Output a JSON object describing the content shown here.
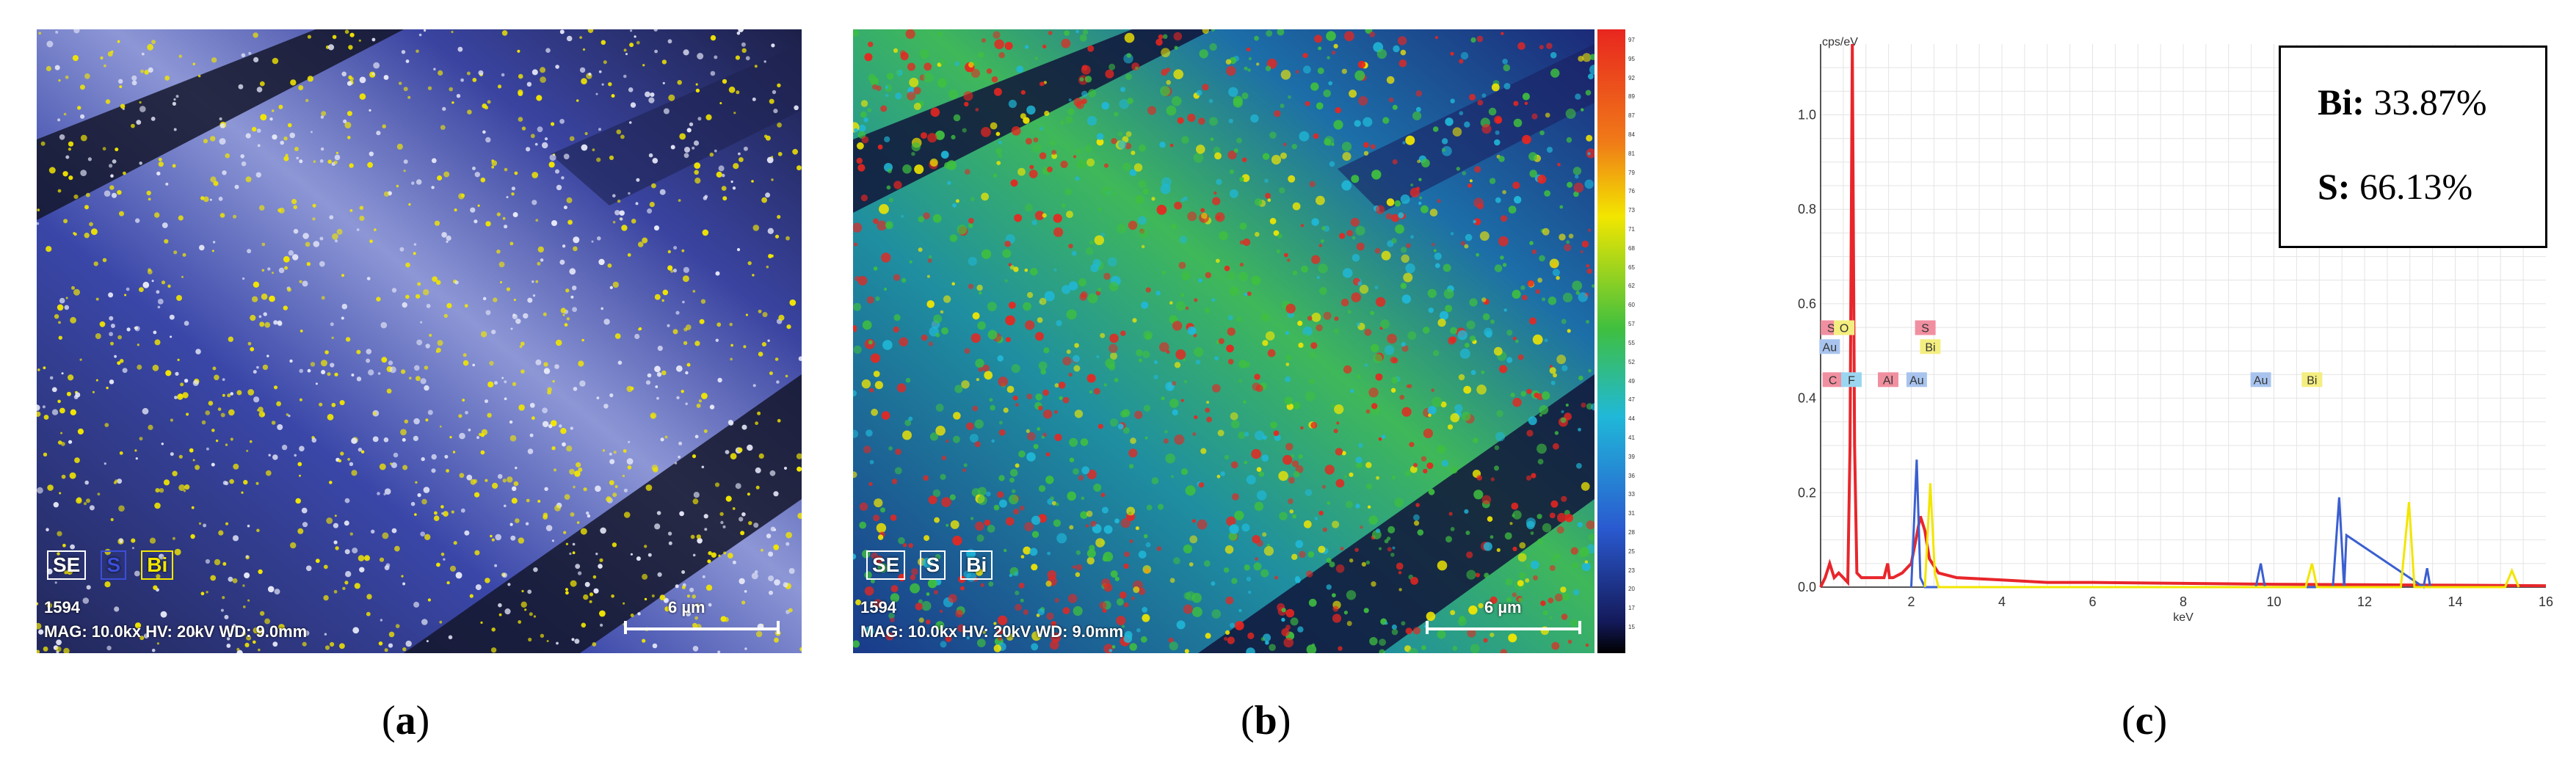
{
  "panel_a": {
    "legend": [
      {
        "label": "SE",
        "color": "#ffffff"
      },
      {
        "label": "S",
        "color": "#3b4fd8"
      },
      {
        "label": "Bi",
        "color": "#f2e600"
      }
    ],
    "sample_id": "1594",
    "info": "MAG: 10.0kx  HV: 20kV  WD: 9.0mm",
    "scalebar_label": "6 µm",
    "caption": "a"
  },
  "panel_b": {
    "legend": [
      {
        "label": "SE",
        "color": "#ffffff"
      },
      {
        "label": "S",
        "color": "#ffffff"
      },
      {
        "label": "Bi",
        "color": "#ffffff"
      }
    ],
    "sample_id": "1594",
    "info": "MAG: 10.0kx  HV: 20kV  WD: 9.0mm",
    "scalebar_label": "6 µm",
    "caption": "b",
    "colorbar_ticks": [
      "97",
      "95",
      "92",
      "89",
      "87",
      "84",
      "81",
      "79",
      "76",
      "73",
      "71",
      "68",
      "65",
      "62",
      "60",
      "57",
      "55",
      "52",
      "49",
      "47",
      "44",
      "41",
      "39",
      "36",
      "33",
      "31",
      "28",
      "25",
      "23",
      "20",
      "17",
      "15"
    ]
  },
  "panel_c": {
    "caption": "c",
    "results": [
      {
        "element": "Bi:",
        "value": "33.87%"
      },
      {
        "element": "S:",
        "value": "66.13%"
      }
    ]
  },
  "chart_data": {
    "type": "line",
    "title": "",
    "xlabel": "keV",
    "ylabel": "cps/eV",
    "xlim": [
      0,
      16
    ],
    "ylim": [
      0,
      1.15
    ],
    "x_ticks": [
      "2",
      "4",
      "6",
      "8",
      "10",
      "12",
      "14",
      "16"
    ],
    "y_ticks": [
      "0.0",
      "0.2",
      "0.4",
      "0.6",
      "0.8",
      "1.0"
    ],
    "grid": true,
    "series": [
      {
        "color": "#e8262b",
        "x": [
          0.0,
          0.1,
          0.2,
          0.3,
          0.4,
          0.5,
          0.6,
          0.65,
          0.7,
          0.75,
          0.8,
          0.9,
          1.0,
          1.2,
          1.4,
          1.48,
          1.52,
          1.6,
          1.8,
          2.0,
          2.1,
          2.2,
          2.3,
          2.4,
          2.6,
          3.0,
          4.0,
          5.0,
          6.0,
          8.0,
          10.0,
          12.0,
          14.0,
          16.0
        ],
        "y": [
          0.0,
          0.02,
          0.05,
          0.02,
          0.03,
          0.02,
          0.01,
          0.3,
          1.15,
          0.3,
          0.03,
          0.02,
          0.02,
          0.02,
          0.02,
          0.05,
          0.02,
          0.02,
          0.03,
          0.05,
          0.1,
          0.15,
          0.12,
          0.06,
          0.03,
          0.02,
          0.015,
          0.01,
          0.01,
          0.008,
          0.006,
          0.005,
          0.004,
          0.003
        ]
      },
      {
        "color": "#3b5fd0",
        "x": [
          2.0,
          2.12,
          2.2,
          2.3,
          9.6,
          9.71,
          9.8,
          11.3,
          11.44,
          11.55,
          11.6,
          13.3,
          13.38,
          13.45
        ],
        "y": [
          0.0,
          0.27,
          0.02,
          0.0,
          0.0,
          0.05,
          0.0,
          0.0,
          0.19,
          0.0,
          0.11,
          0.0,
          0.04,
          0.0
        ]
      },
      {
        "color": "#f2e600",
        "x": [
          2.3,
          2.42,
          2.52,
          2.6,
          10.7,
          10.84,
          10.95,
          12.8,
          12.98,
          13.1,
          15.1,
          15.25,
          15.4
        ],
        "y": [
          0.0,
          0.22,
          0.03,
          0.0,
          0.0,
          0.05,
          0.0,
          0.0,
          0.18,
          0.0,
          0.0,
          0.035,
          0.0
        ]
      }
    ],
    "annotations": [
      {
        "label": "Au",
        "x": 0.2,
        "color": "#a8c4ee"
      },
      {
        "label": "C",
        "x": 0.27,
        "color": "#f08fa0"
      },
      {
        "label": "S",
        "x": 0.23,
        "color": "#f08fa0"
      },
      {
        "label": "O",
        "x": 0.52,
        "color": "#f4ee80"
      },
      {
        "label": "F",
        "x": 0.68,
        "color": "#9ad6f0"
      },
      {
        "label": "Al",
        "x": 1.49,
        "color": "#f08fa0"
      },
      {
        "label": "Au",
        "x": 2.12,
        "color": "#a8c4ee"
      },
      {
        "label": "S",
        "x": 2.31,
        "color": "#f08fa0"
      },
      {
        "label": "Bi",
        "x": 2.42,
        "color": "#f4ee80"
      },
      {
        "label": "Au",
        "x": 9.71,
        "color": "#a8c4ee"
      },
      {
        "label": "Bi",
        "x": 10.84,
        "color": "#f4ee80"
      }
    ]
  }
}
